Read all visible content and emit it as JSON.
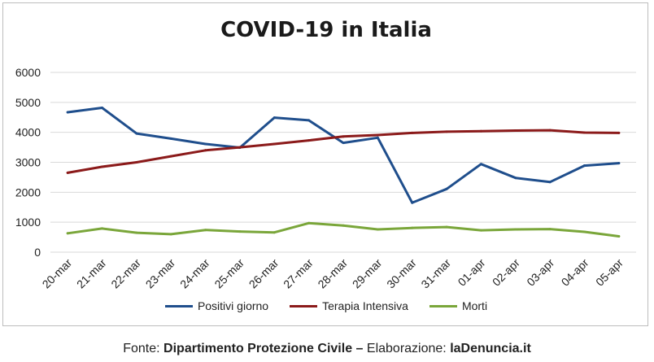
{
  "chart_data": {
    "type": "line",
    "title": "COVID-19 in Italia",
    "categories": [
      "20-mar",
      "21-mar",
      "22-mar",
      "23-mar",
      "24-mar",
      "25-mar",
      "26-mar",
      "27-mar",
      "28-mar",
      "29-mar",
      "30-mar",
      "31-mar",
      "01-apr",
      "02-apr",
      "03-apr",
      "04-apr",
      "05-apr"
    ],
    "ylim": [
      0,
      6000
    ],
    "yticks": [
      "0",
      "1000",
      "2000",
      "3000",
      "4000",
      "5000",
      "6000"
    ],
    "grid": true,
    "legend_position": "bottom",
    "series": [
      {
        "name": "Positivi giorno",
        "color": "#1f4e8c",
        "values": [
          4670,
          4820,
          3960,
          3790,
          3610,
          3490,
          4490,
          4400,
          3650,
          3820,
          1650,
          2110,
          2940,
          2480,
          2340,
          2890,
          2970
        ]
      },
      {
        "name": "Terapia Intensiva",
        "color": "#8b1a1a",
        "values": [
          2650,
          2850,
          3000,
          3200,
          3400,
          3500,
          3610,
          3730,
          3860,
          3910,
          3980,
          4020,
          4040,
          4060,
          4070,
          3990,
          3980
        ]
      },
      {
        "name": "Morti",
        "color": "#7aa63a",
        "values": [
          630,
          790,
          650,
          600,
          740,
          690,
          660,
          970,
          890,
          760,
          810,
          840,
          730,
          760,
          770,
          680,
          530
        ]
      }
    ]
  },
  "footer": {
    "prefix": "Fonte: ",
    "source": "Dipartimento Protezione Civile",
    "sep": " – ",
    "middle": "Elaborazione: ",
    "site": "laDenuncia.it"
  }
}
